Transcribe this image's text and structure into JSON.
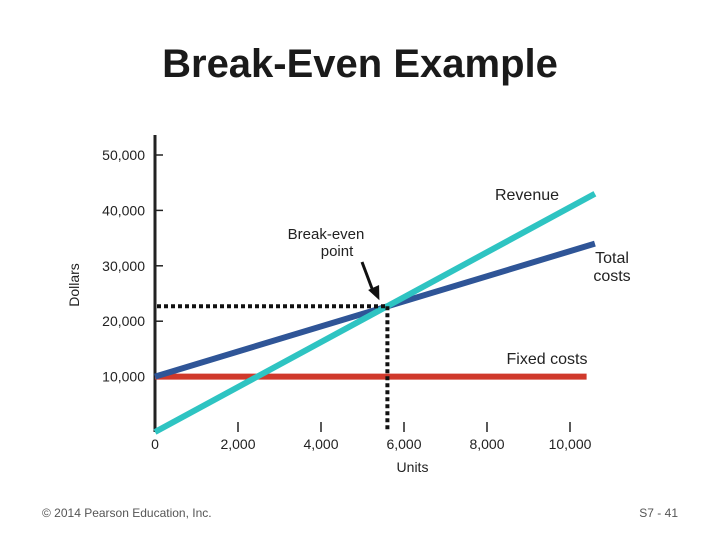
{
  "slide": {
    "title": "Break-Even Example",
    "copyright": "© 2014 Pearson Education, Inc.",
    "page_number": "S7 - 41"
  },
  "chart_data": {
    "type": "line",
    "title": "",
    "xlabel": "Units",
    "ylabel": "Dollars",
    "xlim": [
      0,
      10000
    ],
    "ylim": [
      0,
      50000
    ],
    "x_ticks": [
      {
        "value": 0,
        "label": "0"
      },
      {
        "value": 2000,
        "label": "2,000"
      },
      {
        "value": 4000,
        "label": "4,000"
      },
      {
        "value": 6000,
        "label": "6,000"
      },
      {
        "value": 8000,
        "label": "8,000"
      },
      {
        "value": 10000,
        "label": "10,000"
      }
    ],
    "y_ticks": [
      {
        "value": 10000,
        "label": "10,000"
      },
      {
        "value": 20000,
        "label": "20,000"
      },
      {
        "value": 30000,
        "label": "30,000"
      },
      {
        "value": 40000,
        "label": "40,000"
      },
      {
        "value": 50000,
        "label": "50,000"
      }
    ],
    "series": [
      {
        "name": "Fixed costs",
        "color": "#d0392b",
        "points": [
          [
            0,
            10000
          ],
          [
            10400,
            10000
          ]
        ]
      },
      {
        "name": "Total costs",
        "color": "#2f5597",
        "points": [
          [
            0,
            10000
          ],
          [
            10600,
            34000
          ]
        ]
      },
      {
        "name": "Revenue",
        "color": "#2ec4c2",
        "points": [
          [
            0,
            0
          ],
          [
            10600,
            43000
          ]
        ]
      }
    ],
    "annotations": {
      "break_even_label": "Break-even point",
      "break_even_label_lines": [
        "Break-even",
        "point"
      ],
      "break_even": {
        "x": 5600,
        "y": 22700
      },
      "revenue_label": "Revenue",
      "total_costs_label_lines": [
        "Total",
        "costs"
      ],
      "fixed_costs_label": "Fixed costs"
    },
    "grid": false
  }
}
